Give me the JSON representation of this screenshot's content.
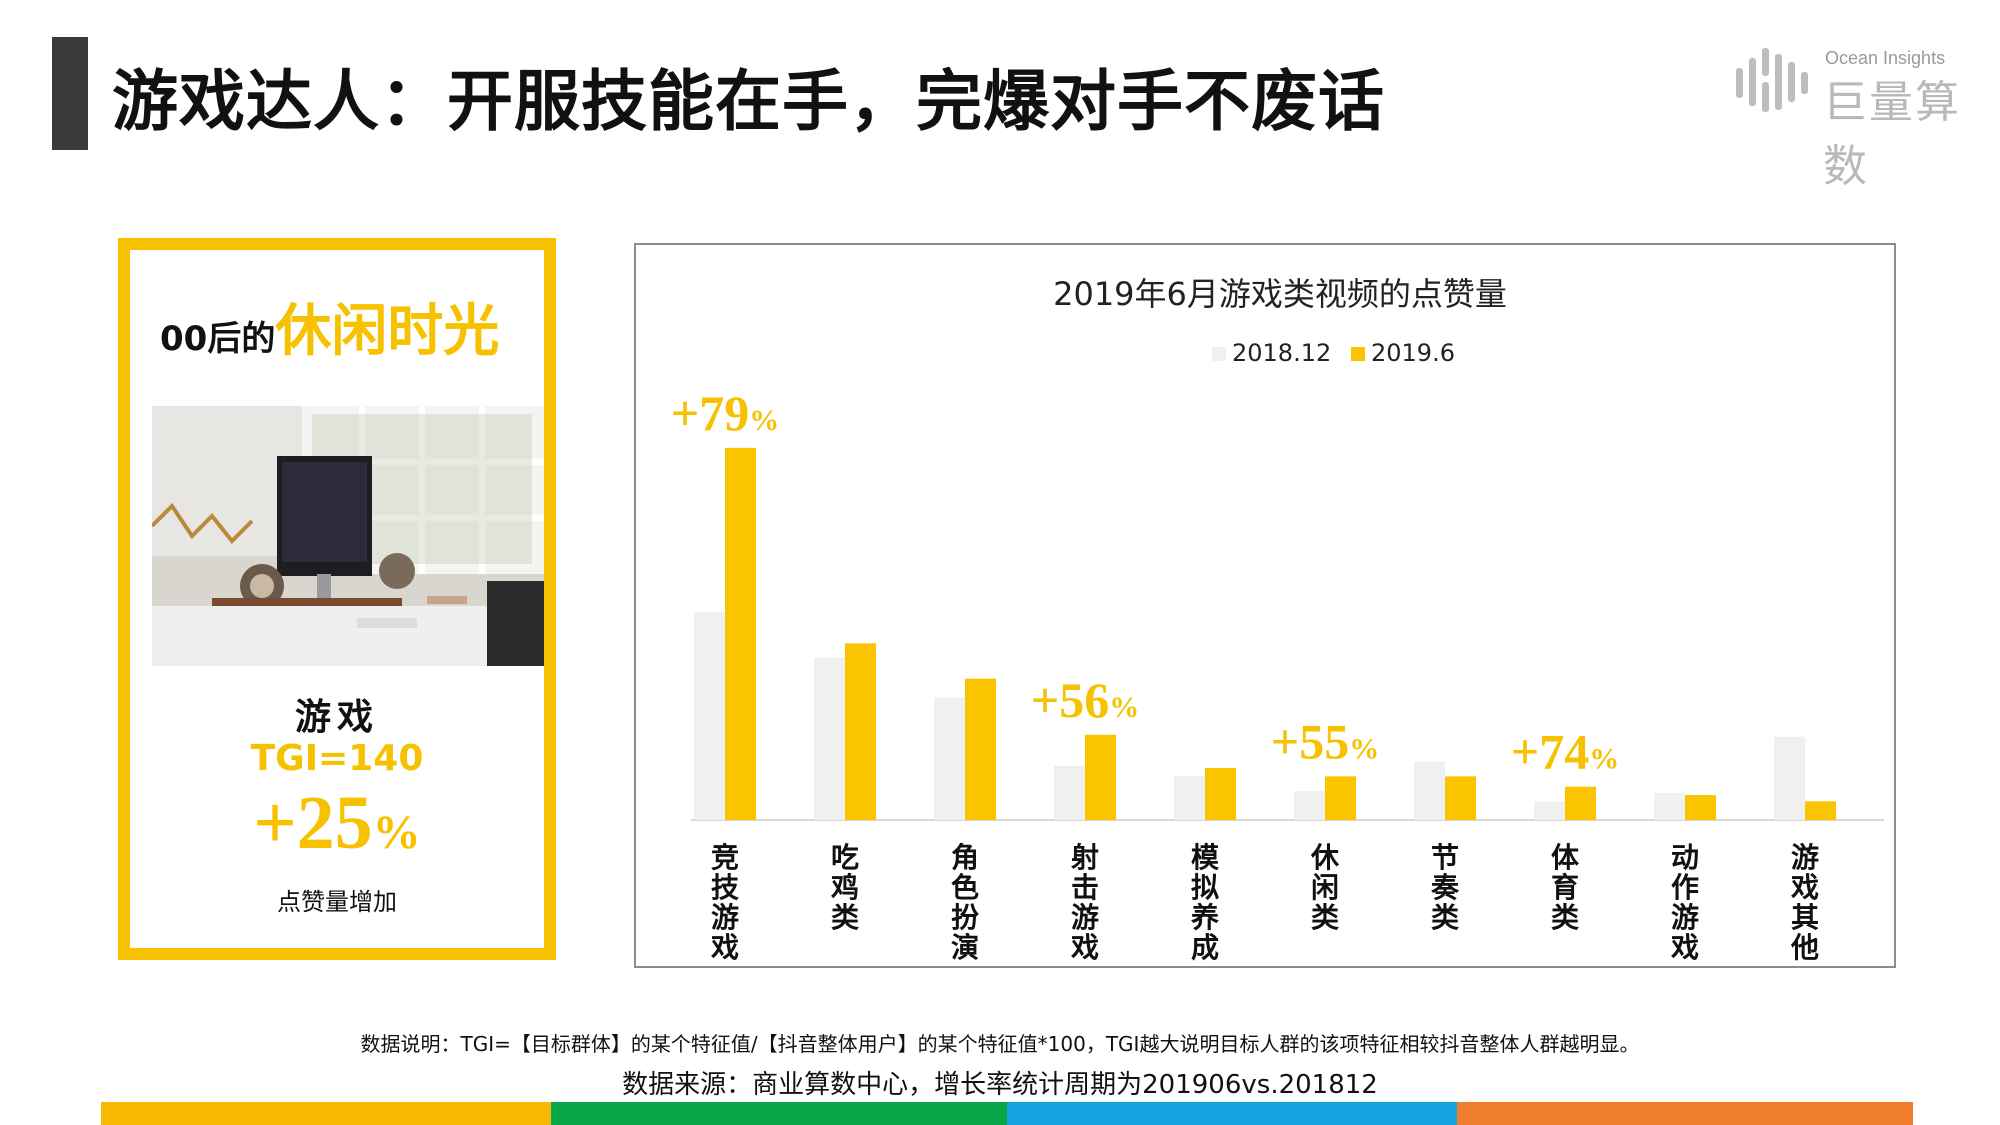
{
  "header": {
    "title": "游戏达人：开服技能在手，完爆对手不废话",
    "logo_sub": "Ocean Insights",
    "logo_main": "巨量算数"
  },
  "card": {
    "heading_prefix": "00后的",
    "heading_highlight": "休闲时光",
    "category": "游戏",
    "tgi": "TGI=140",
    "growth": "+25",
    "growth_unit": "%",
    "note": "点赞量增加"
  },
  "chart_data": {
    "type": "bar",
    "title": "2019年6月游戏类视频的点赞量",
    "legend_position": "top-center",
    "categories": [
      "竞技游戏",
      "吃鸡类",
      "角色扮演",
      "射击游戏",
      "模拟养成",
      "休闲类",
      "节奏类",
      "体育类",
      "动作游戏",
      "游戏其他"
    ],
    "series": [
      {
        "name": "2018.12",
        "color": "#f0f0f0",
        "values": [
          100,
          78,
          59,
          26,
          21,
          14,
          28,
          9,
          13,
          40
        ]
      },
      {
        "name": "2019.6",
        "color": "#fbc400",
        "values": [
          179,
          85,
          68,
          41,
          25,
          21,
          21,
          16,
          12,
          9
        ]
      }
    ],
    "ylim": [
      0,
      190
    ],
    "grid": false,
    "xlabel": "",
    "ylabel": "",
    "annotations": [
      {
        "category_index": 0,
        "text": "+79",
        "unit": "%"
      },
      {
        "category_index": 3,
        "text": "+56",
        "unit": "%"
      },
      {
        "category_index": 5,
        "text": "+55",
        "unit": "%"
      },
      {
        "category_index": 7,
        "text": "+74",
        "unit": "%"
      }
    ]
  },
  "footer": {
    "note": "数据说明：TGI=【目标群体】的某个特征值/【抖音整体用户】的某个特征值*100，TGI越大说明目标人群的该项特征相较抖音整体人群越明显。",
    "source": "数据来源：商业算数中心，增长率统计周期为201906vs.201812"
  },
  "colors": {
    "accent": "#f6c200",
    "bottom_bar": [
      "#f6b800",
      "#0aa74a",
      "#17a3e0",
      "#ef7d2c"
    ]
  }
}
